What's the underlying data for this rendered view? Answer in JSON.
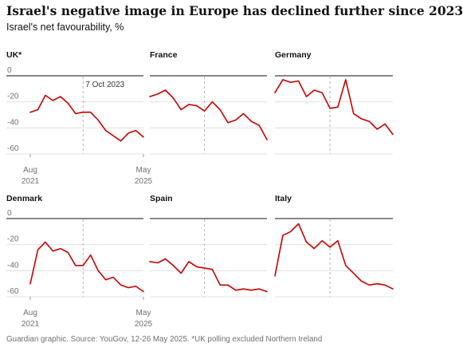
{
  "title": "Israel's negative image in Europe has declined further since 2023",
  "subtitle": "Israel's net favourability, %",
  "footer": "Guardian graphic. Source: YouGov, 12-26 May 2025. *UK polling excluded Northern Ireland",
  "chart_data": {
    "type": "line",
    "ylim": [
      -60,
      0
    ],
    "y_ticks": [
      "0",
      "-20",
      "-40",
      "-60"
    ],
    "x_tick_labels": [
      {
        "top": "Aug",
        "bottom": "2021"
      },
      {
        "top": "May",
        "bottom": "2025"
      }
    ],
    "marker": {
      "label": "7 Oct 2023",
      "x_index": 7
    },
    "line_color": "#c70000",
    "grid": true,
    "panels": [
      {
        "name": "UK*",
        "values": [
          -28,
          -26,
          -15,
          -19,
          -16,
          -21,
          -29,
          -28,
          -28,
          -34,
          -42,
          -46,
          -50,
          -44,
          -42,
          -47
        ]
      },
      {
        "name": "France",
        "values": [
          -16,
          -14,
          -11,
          -17,
          -26,
          -22,
          -23,
          -27,
          -20,
          -26,
          -36,
          -34,
          -29,
          -35,
          -38,
          -49
        ]
      },
      {
        "name": "Germany",
        "values": [
          -13,
          -3,
          -5,
          -4,
          -16,
          -11,
          -13,
          -25,
          -24,
          -3,
          -29,
          -33,
          -35,
          -41,
          -37,
          -45
        ]
      },
      {
        "name": "Denmark",
        "values": [
          -50,
          -24,
          -18,
          -25,
          -23,
          -26,
          -36,
          -36,
          -28,
          -40,
          -47,
          -45,
          -51,
          -53,
          -52,
          -56
        ]
      },
      {
        "name": "Spain",
        "values": [
          -33,
          -34,
          -31,
          -36,
          -42,
          -33,
          -37,
          -38,
          -39,
          -51,
          -51,
          -55,
          -54,
          -55,
          -54,
          -56
        ]
      },
      {
        "name": "Italy",
        "values": [
          -44,
          -13,
          -10,
          -4,
          -18,
          -23,
          -17,
          -22,
          -17,
          -36,
          -42,
          -48,
          -51,
          -50,
          -51,
          -54
        ]
      }
    ]
  }
}
